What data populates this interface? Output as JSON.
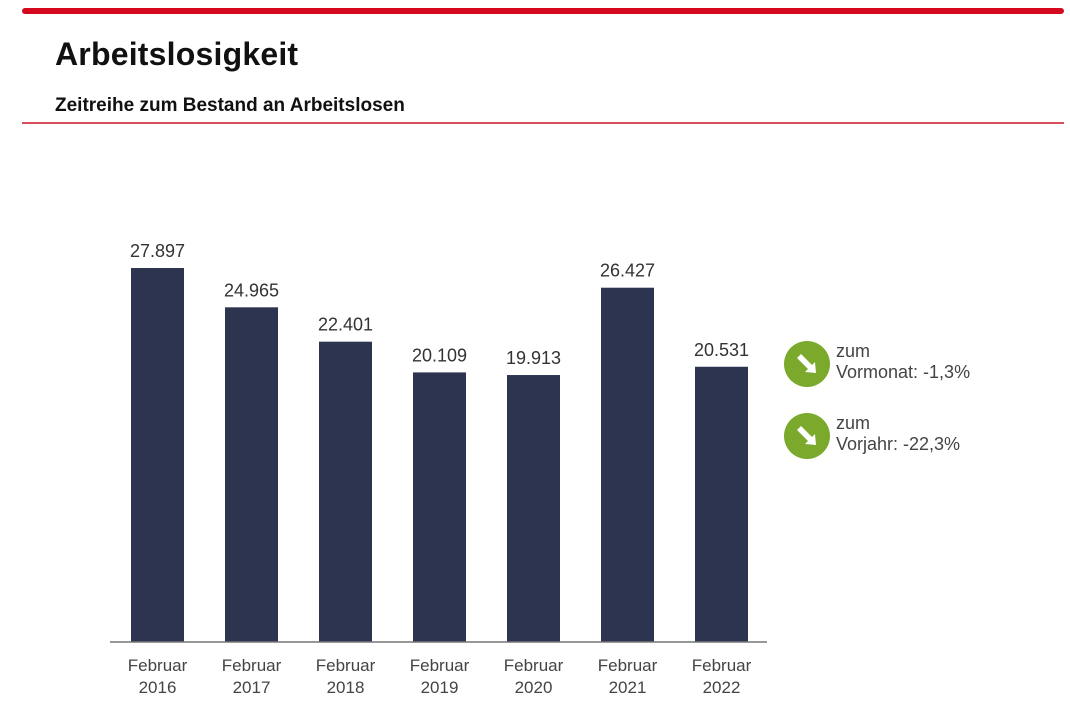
{
  "header": {
    "title": "Arbeitslosigkeit",
    "subtitle": "Zeitreihe zum Bestand an Arbeitslosen"
  },
  "colors": {
    "accent": "#d5091d",
    "bar": "#2d3450",
    "indicator": "#7aa92c"
  },
  "chart_data": {
    "type": "bar",
    "title": "Zeitreihe zum Bestand an Arbeitslosen",
    "xlabel": "",
    "ylabel": "",
    "categories": [
      [
        "Februar",
        "2016"
      ],
      [
        "Februar",
        "2017"
      ],
      [
        "Februar",
        "2018"
      ],
      [
        "Februar",
        "2019"
      ],
      [
        "Februar",
        "2020"
      ],
      [
        "Februar",
        "2021"
      ],
      [
        "Februar",
        "2022"
      ]
    ],
    "values": [
      27897,
      24965,
      22401,
      20109,
      19913,
      26427,
      20531
    ],
    "value_labels": [
      "27.897",
      "24.965",
      "22.401",
      "20.109",
      "19.913",
      "26.427",
      "20.531"
    ],
    "ylim": [
      0,
      28000
    ],
    "grid": false,
    "legend": "none"
  },
  "indicators": [
    {
      "icon": "arrow-down-right-icon",
      "line1": "zum",
      "line2": "Vormonat: -1,3%"
    },
    {
      "icon": "arrow-down-right-icon",
      "line1": "zum",
      "line2": "Vorjahr: -22,3%"
    }
  ]
}
